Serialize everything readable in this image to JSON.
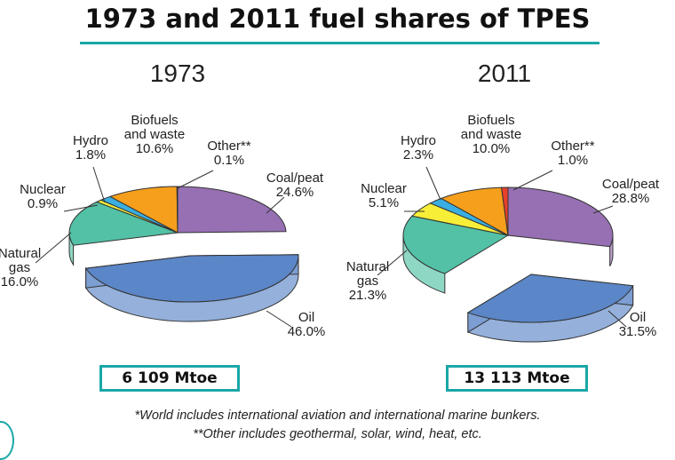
{
  "title": "1973 and 2011 fuel shares of TPES",
  "colors": {
    "Coal/peat": "#9670b3",
    "Oil": "#5b86c7",
    "Natural gas": "#52c1a6",
    "Nuclear": "#f7ee38",
    "Hydro": "#3aaee0",
    "Biofuels and waste": "#f59f1c",
    "Other": "#e8402a"
  },
  "chart_data": [
    {
      "type": "pie",
      "title": "1973",
      "total": "6 109 Mtoe",
      "slices": [
        {
          "name": "Coal/peat",
          "value": 24.6,
          "label_lines": [
            "Coal/peat",
            "24.6%"
          ]
        },
        {
          "name": "Oil",
          "value": 46.0,
          "label_lines": [
            "Oil",
            "46.0%"
          ]
        },
        {
          "name": "Natural gas",
          "value": 16.0,
          "label_lines": [
            "Natural",
            "gas",
            "16.0%"
          ]
        },
        {
          "name": "Nuclear",
          "value": 0.9,
          "label_lines": [
            "Nuclear",
            "0.9%"
          ]
        },
        {
          "name": "Hydro",
          "value": 1.8,
          "label_lines": [
            "Hydro",
            "1.8%"
          ]
        },
        {
          "name": "Biofuels and waste",
          "value": 10.6,
          "label_lines": [
            "Biofuels",
            "and waste",
            "10.6%"
          ]
        },
        {
          "name": "Other**",
          "value": 0.1,
          "label_lines": [
            "Other**",
            "0.1%"
          ]
        }
      ]
    },
    {
      "type": "pie",
      "title": "2011",
      "total": "13 113 Mtoe",
      "slices": [
        {
          "name": "Coal/peat",
          "value": 28.8,
          "label_lines": [
            "Coal/peat",
            "28.8%"
          ]
        },
        {
          "name": "Oil",
          "value": 31.5,
          "label_lines": [
            "Oil",
            "31.5%"
          ]
        },
        {
          "name": "Natural gas",
          "value": 21.3,
          "label_lines": [
            "Natural",
            "gas",
            "21.3%"
          ]
        },
        {
          "name": "Nuclear",
          "value": 5.1,
          "label_lines": [
            "Nuclear",
            "5.1%"
          ]
        },
        {
          "name": "Hydro",
          "value": 2.3,
          "label_lines": [
            "Hydro",
            "2.3%"
          ]
        },
        {
          "name": "Biofuels and waste",
          "value": 10.0,
          "label_lines": [
            "Biofuels",
            "and waste",
            "10.0%"
          ]
        },
        {
          "name": "Other**",
          "value": 1.0,
          "label_lines": [
            "Other**",
            "1.0%"
          ]
        }
      ]
    }
  ],
  "footnotes": [
    "*World includes international aviation and international marine bunkers.",
    "**Other includes geothermal, solar, wind, heat, etc."
  ]
}
